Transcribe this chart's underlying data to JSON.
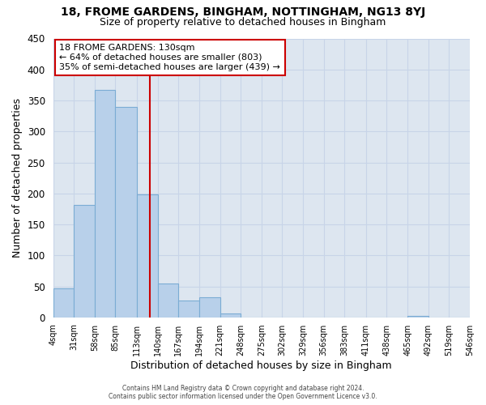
{
  "title1": "18, FROME GARDENS, BINGHAM, NOTTINGHAM, NG13 8YJ",
  "title2": "Size of property relative to detached houses in Bingham",
  "xlabel": "Distribution of detached houses by size in Bingham",
  "ylabel": "Number of detached properties",
  "bar_values": [
    47,
    181,
    367,
    340,
    199,
    54,
    27,
    32,
    6,
    0,
    0,
    0,
    0,
    0,
    0,
    0,
    0,
    2,
    0,
    0
  ],
  "bin_edges": [
    4,
    31,
    58,
    85,
    113,
    140,
    167,
    194,
    221,
    248,
    275,
    302,
    329,
    356,
    383,
    411,
    438,
    465,
    492,
    519,
    546
  ],
  "tick_labels": [
    "4sqm",
    "31sqm",
    "58sqm",
    "85sqm",
    "113sqm",
    "140sqm",
    "167sqm",
    "194sqm",
    "221sqm",
    "248sqm",
    "275sqm",
    "302sqm",
    "329sqm",
    "356sqm",
    "383sqm",
    "411sqm",
    "438sqm",
    "465sqm",
    "492sqm",
    "519sqm",
    "546sqm"
  ],
  "bar_color": "#b8d0ea",
  "bar_edge_color": "#7bacd4",
  "vline_x": 130,
  "vline_color": "#cc0000",
  "ylim": [
    0,
    450
  ],
  "yticks": [
    0,
    50,
    100,
    150,
    200,
    250,
    300,
    350,
    400,
    450
  ],
  "annotation_title": "18 FROME GARDENS: 130sqm",
  "annotation_line1": "← 64% of detached houses are smaller (803)",
  "annotation_line2": "35% of semi-detached houses are larger (439) →",
  "annotation_box_color": "#ffffff",
  "annotation_box_edge": "#cc0000",
  "grid_color": "#c8d4e8",
  "bg_color": "#dde6f0",
  "fig_bg_color": "#ffffff",
  "footer1": "Contains HM Land Registry data © Crown copyright and database right 2024.",
  "footer2": "Contains public sector information licensed under the Open Government Licence v3.0."
}
